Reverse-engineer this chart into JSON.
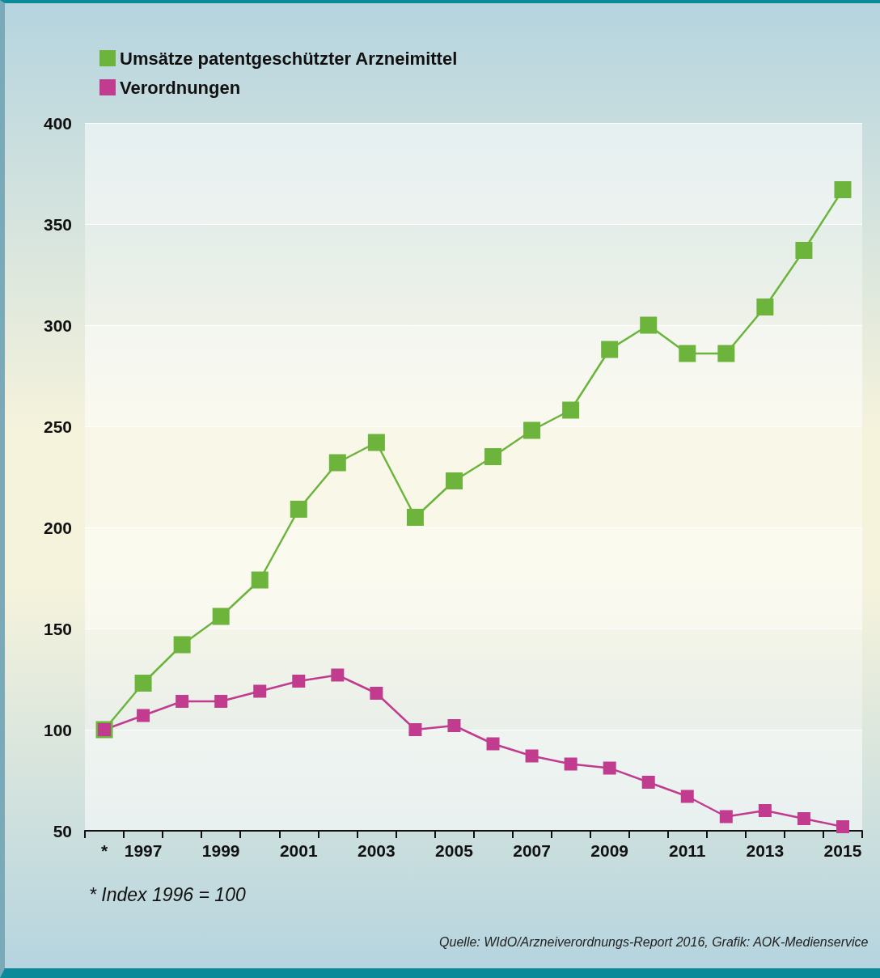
{
  "chart_data": {
    "type": "line",
    "categories": [
      "*",
      "1997",
      null,
      "1999",
      null,
      "2001",
      null,
      "2003",
      null,
      "2005",
      null,
      "2007",
      null,
      "2009",
      null,
      "2011",
      null,
      "2013",
      null,
      "2015"
    ],
    "series": [
      {
        "name": "Umsätze patentgeschützter Arzneimittel",
        "color": "#6cb43c",
        "values": [
          100,
          123,
          142,
          156,
          174,
          209,
          232,
          242,
          205,
          223,
          235,
          248,
          258,
          288,
          300,
          286,
          286,
          309,
          337,
          367
        ]
      },
      {
        "name": "Verordnungen",
        "color": "#c13b8e",
        "values": [
          100,
          107,
          114,
          114,
          119,
          124,
          127,
          118,
          100,
          102,
          93,
          87,
          83,
          81,
          74,
          67,
          57,
          60,
          56,
          52
        ]
      }
    ],
    "ylim": [
      50,
      400
    ],
    "yticks": [
      50,
      100,
      150,
      200,
      250,
      300,
      350,
      400
    ],
    "grid": "y",
    "legend": "top left",
    "marker": "square",
    "line_style": "solid",
    "annotations": [
      "* Index 1996 = 100",
      "Quelle: WIdO/Arzneiverordnungs-Report 2016, Grafik: AOK-Medienservice"
    ]
  }
}
